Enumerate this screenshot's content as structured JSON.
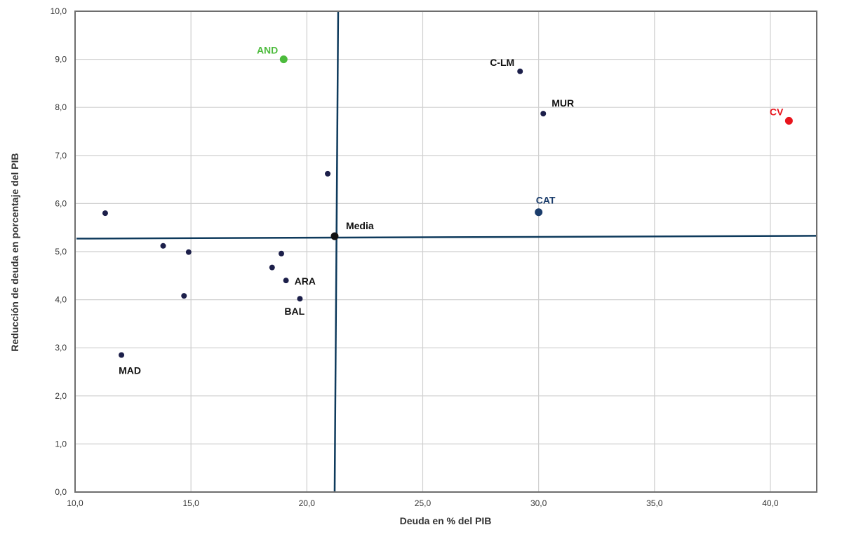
{
  "chart_data": {
    "type": "scatter",
    "title": "",
    "xlabel": "Deuda en % del PIB",
    "ylabel": "Reducción de deuda en porcentaje del PIB",
    "xlim": [
      10,
      42
    ],
    "ylim": [
      0,
      10
    ],
    "x_ticks": [
      "10,0",
      "15,0",
      "20,0",
      "25,0",
      "30,0",
      "35,0",
      "40,0"
    ],
    "y_ticks": [
      "0,0",
      "1,0",
      "2,0",
      "3,0",
      "4,0",
      "5,0",
      "6,0",
      "7,0",
      "8,0",
      "9,0",
      "10,0"
    ],
    "grid": true,
    "reference_lines": {
      "x": 21.2,
      "y": 5.3
    },
    "colors": {
      "default_point": "#1c1f4a",
      "reference_line": "#0e3a5c",
      "and": "#4cbb3c",
      "cv": "#e8141c",
      "cat": "#1a3c6b",
      "media": "#111111",
      "grid": "#cfcfcf",
      "frame": "#6e6e6e"
    },
    "points": [
      {
        "x": 19.0,
        "y": 9.0,
        "label": "AND",
        "color": "#4cbb3c",
        "size": "large",
        "label_pos": "above-left"
      },
      {
        "x": 29.2,
        "y": 8.75,
        "label": "C-LM",
        "color": "#1c1f4a",
        "size": "small",
        "label_pos": "above-left"
      },
      {
        "x": 30.2,
        "y": 7.87,
        "label": "MUR",
        "color": "#1c1f4a",
        "size": "small",
        "label_pos": "above-right"
      },
      {
        "x": 40.8,
        "y": 7.72,
        "label": "CV",
        "color": "#e8141c",
        "size": "large",
        "label_pos": "above-left"
      },
      {
        "x": 30.0,
        "y": 5.82,
        "label": "CAT",
        "color": "#1a3c6b",
        "size": "large",
        "label_pos": "above"
      },
      {
        "x": 21.2,
        "y": 5.32,
        "label": "Media",
        "color": "#111111",
        "size": "large",
        "label_pos": "right"
      },
      {
        "x": 19.1,
        "y": 4.4,
        "label": "ARA",
        "color": "#1c1f4a",
        "size": "small",
        "label_pos": "right"
      },
      {
        "x": 19.7,
        "y": 4.02,
        "label": "BAL",
        "color": "#1c1f4a",
        "size": "small",
        "label_pos": "below-left"
      },
      {
        "x": 12.0,
        "y": 2.85,
        "label": "MAD",
        "color": "#1c1f4a",
        "size": "small",
        "label_pos": "below"
      },
      {
        "x": 20.9,
        "y": 6.62,
        "label": "",
        "color": "#1c1f4a",
        "size": "small"
      },
      {
        "x": 11.3,
        "y": 5.8,
        "label": "",
        "color": "#1c1f4a",
        "size": "small"
      },
      {
        "x": 13.8,
        "y": 5.12,
        "label": "",
        "color": "#1c1f4a",
        "size": "small"
      },
      {
        "x": 14.9,
        "y": 4.99,
        "label": "",
        "color": "#1c1f4a",
        "size": "small"
      },
      {
        "x": 14.7,
        "y": 4.08,
        "label": "",
        "color": "#1c1f4a",
        "size": "small"
      },
      {
        "x": 18.9,
        "y": 4.96,
        "label": "",
        "color": "#1c1f4a",
        "size": "small"
      },
      {
        "x": 18.5,
        "y": 4.67,
        "label": "",
        "color": "#1c1f4a",
        "size": "small"
      }
    ]
  }
}
